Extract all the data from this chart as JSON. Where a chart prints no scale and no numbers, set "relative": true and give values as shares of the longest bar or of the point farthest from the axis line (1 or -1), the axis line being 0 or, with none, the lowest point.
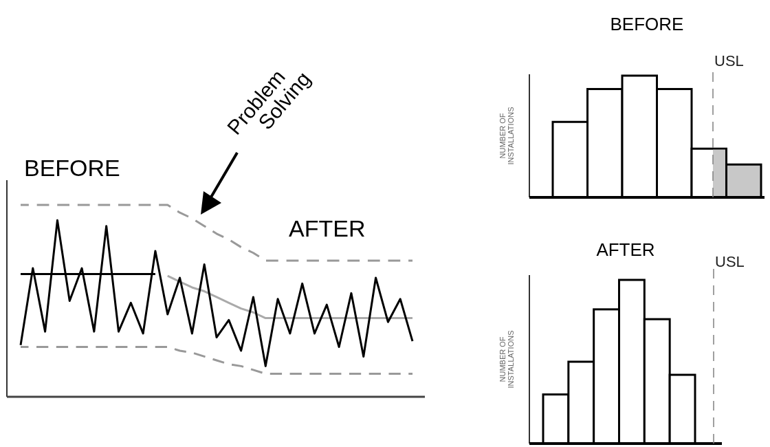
{
  "chart_data": [
    {
      "type": "line",
      "relative": true,
      "categories": [
        null,
        null,
        null,
        null,
        null,
        null,
        null,
        null,
        null,
        null,
        null,
        null,
        null,
        null,
        null,
        null,
        null,
        null,
        null,
        null,
        null,
        null,
        null,
        null,
        null,
        null,
        null,
        null,
        null,
        null,
        null,
        null,
        null
      ],
      "annotations": [
        "BEFORE",
        "AFTER",
        "Problem Solving"
      ],
      "series": [
        {
          "color": "#999999",
          "line_style": "dashed",
          "values": [
            1,
            1,
            1,
            1,
            1,
            1,
            1,
            1,
            1,
            1,
            1,
            1,
            1,
            0.96,
            0.93,
            0.89,
            0.85,
            0.82,
            0.78,
            0.75,
            0.71,
            0.71,
            0.71,
            0.71,
            0.71,
            0.71,
            0.71,
            0.71,
            0.71,
            0.71,
            0.71,
            0.71,
            0.71
          ]
        },
        {
          "color": "#999999",
          "line_style": "dashed",
          "values": [
            0.26,
            0.26,
            0.26,
            0.26,
            0.26,
            0.26,
            0.26,
            0.26,
            0.26,
            0.26,
            0.26,
            0.26,
            0.26,
            0.24,
            0.23,
            0.21,
            0.19,
            0.17,
            0.16,
            0.14,
            0.12,
            0.12,
            0.12,
            0.12,
            0.12,
            0.12,
            0.12,
            0.12,
            0.12,
            0.12,
            0.12,
            0.12,
            0.12
          ]
        },
        {
          "color": "#aaaaaa",
          "line_style": "solid",
          "values": [
            null,
            null,
            null,
            null,
            null,
            null,
            null,
            null,
            null,
            null,
            null,
            null,
            0.63,
            0.6,
            0.57,
            0.55,
            0.52,
            0.49,
            0.46,
            0.44,
            0.41,
            0.41,
            0.41,
            0.41,
            0.41,
            0.41,
            0.41,
            0.41,
            0.41,
            0.41,
            0.41,
            0.41,
            0.41
          ]
        },
        {
          "color": "#000000",
          "line_style": "solid",
          "values": [
            0.64,
            0.64,
            0.64,
            0.64,
            0.64,
            0.64,
            0.64,
            0.64,
            0.64,
            0.64,
            0.64,
            0.64,
            null,
            null,
            null,
            null,
            null,
            null,
            null,
            null,
            null,
            null,
            null,
            null,
            null,
            null,
            null,
            null,
            null,
            null,
            null,
            null,
            null
          ]
        },
        {
          "color": "#000000",
          "line_style": "solid",
          "values": [
            0.27,
            0.67,
            0.34,
            0.92,
            0.5,
            0.67,
            0.34,
            0.89,
            0.34,
            0.49,
            0.33,
            0.76,
            0.43,
            0.62,
            0.33,
            0.69,
            0.31,
            0.4,
            0.24,
            0.52,
            0.16,
            0.51,
            0.33,
            0.59,
            0.33,
            0.48,
            0.26,
            0.54,
            0.21,
            0.62,
            0.39,
            0.51,
            0.29
          ]
        }
      ]
    },
    {
      "type": "bar",
      "relative": true,
      "title": "BEFORE",
      "ylabel": "NUMBER OF INSTALLATIONS",
      "categories": [
        null,
        null,
        null,
        null,
        null,
        null
      ],
      "values": [
        0.62,
        0.89,
        1,
        0.89,
        0.4,
        0.27
      ],
      "colors": [
        "#ffffff",
        "#ffffff",
        "#ffffff",
        "#ffffff",
        "#ffffff",
        "#c8c8c8"
      ],
      "annotations": [
        "USL"
      ]
    },
    {
      "type": "bar",
      "relative": true,
      "title": "AFTER",
      "ylabel": "NUMBER OF INSTALLATIONS",
      "categories": [
        null,
        null,
        null,
        null,
        null,
        null
      ],
      "values": [
        0.3,
        0.5,
        0.82,
        1,
        0.76,
        0.42
      ],
      "colors": [
        "#ffffff",
        "#ffffff",
        "#ffffff",
        "#ffffff",
        "#ffffff",
        "#ffffff"
      ],
      "annotations": [
        "USL"
      ]
    }
  ]
}
